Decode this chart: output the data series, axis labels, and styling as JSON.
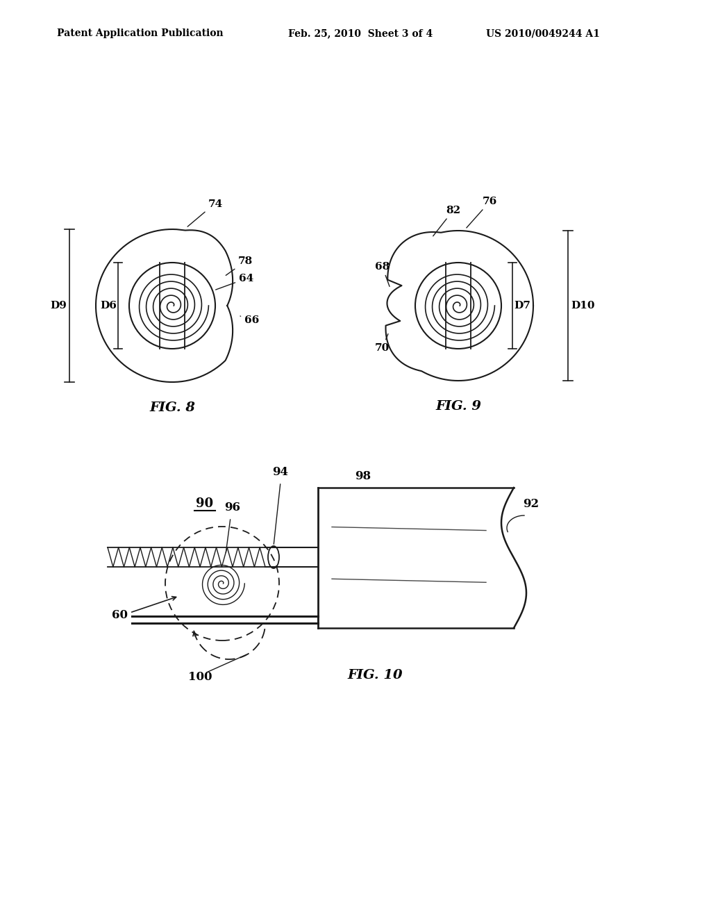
{
  "bg_color": "#ffffff",
  "header_left": "Patent Application Publication",
  "header_mid": "Feb. 25, 2010  Sheet 3 of 4",
  "header_right": "US 2010/0049244 A1",
  "fig8_label": "FIG. 8",
  "fig9_label": "FIG. 9",
  "fig10_label": "FIG. 10",
  "line_color": "#1a1a1a",
  "text_color": "#000000"
}
